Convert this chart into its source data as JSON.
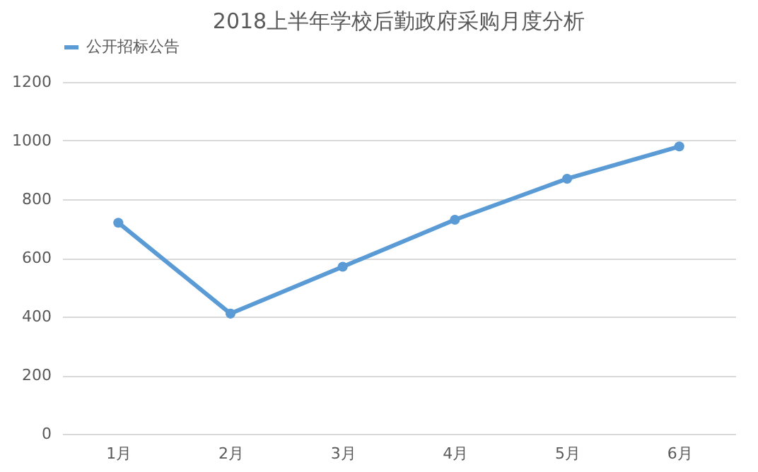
{
  "chart_data": {
    "type": "line",
    "title": "2018上半年学校后勤政府采购月度分析",
    "categories": [
      "1月",
      "2月",
      "3月",
      "4月",
      "5月",
      "6月"
    ],
    "series": [
      {
        "name": "公开招标公告",
        "color": "#5b9bd5",
        "values": [
          720,
          410,
          570,
          730,
          870,
          980
        ]
      }
    ],
    "ylim": [
      0,
      1200
    ],
    "yticks": [
      0,
      200,
      400,
      600,
      800,
      1000,
      1200
    ],
    "grid": "y",
    "legend": "top",
    "marker": "circle",
    "line_style": "solid"
  }
}
